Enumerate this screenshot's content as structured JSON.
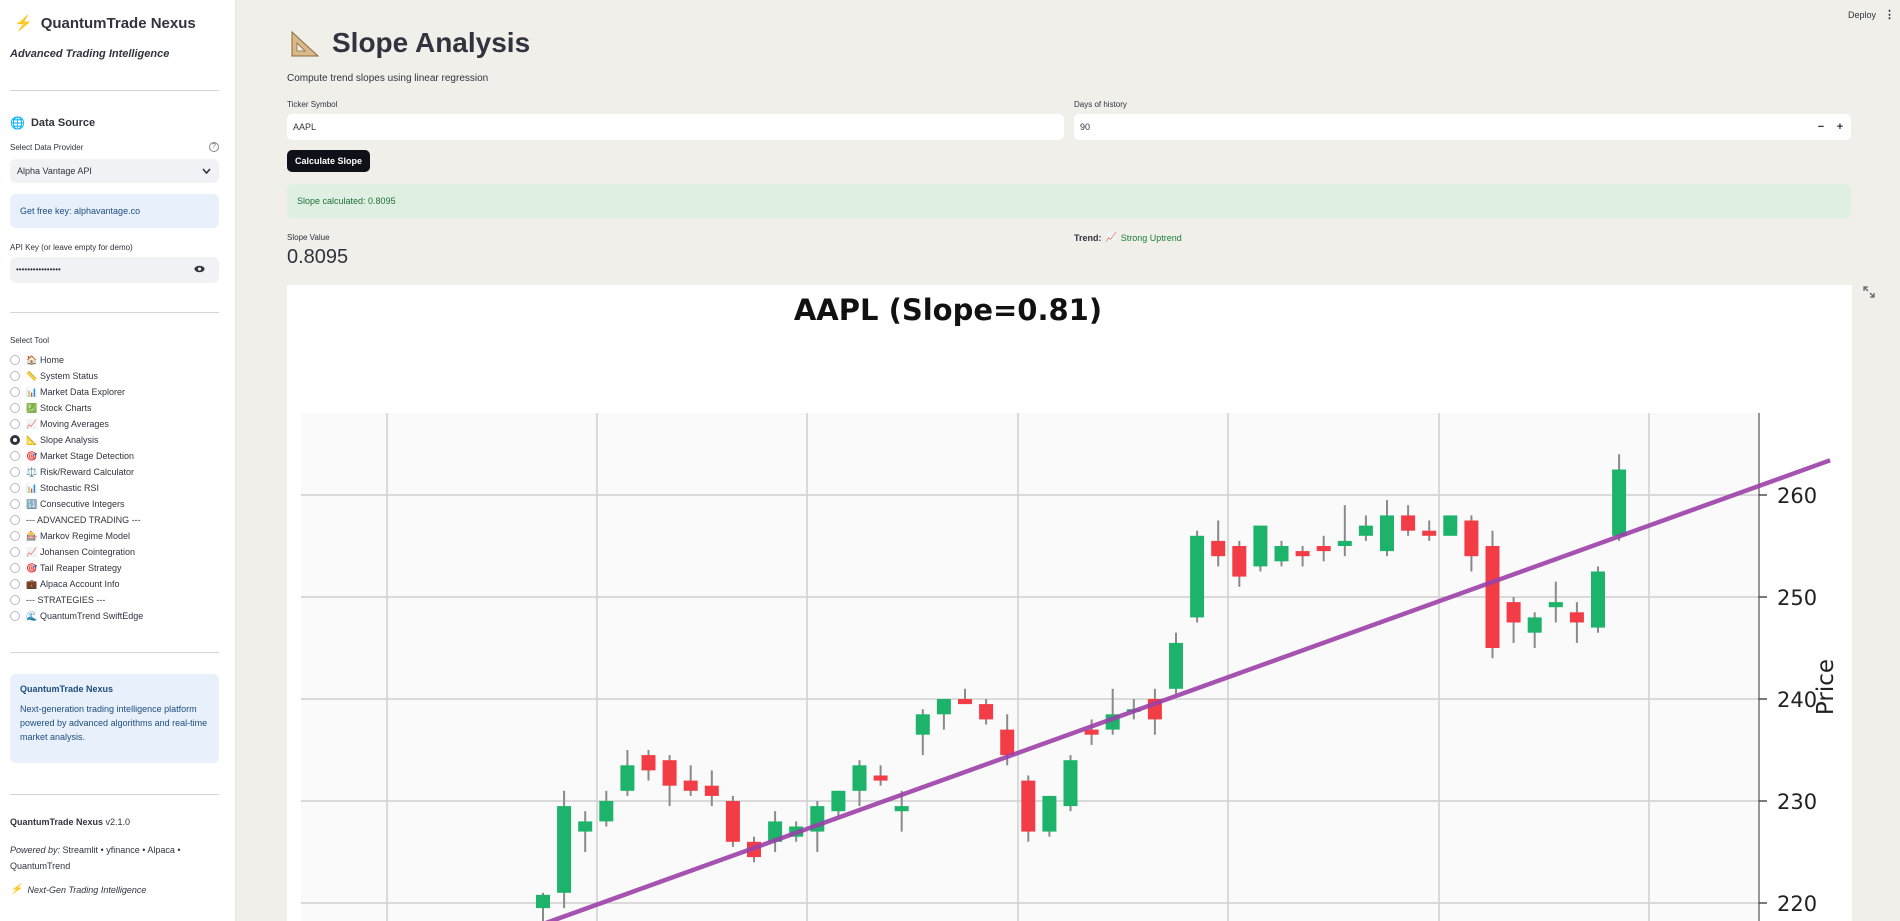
{
  "sidebar": {
    "brand": "QuantumTrade Nexus",
    "tagline": "Advanced Trading Intelligence",
    "data_source_title": "Data Source",
    "provider_label": "Select Data Provider",
    "provider_value": "Alpha Vantage API",
    "free_key_text": "Get free key: alphavantage.co",
    "api_key_label": "API Key (or leave empty for demo)",
    "api_key_value": "••••••••••••••••",
    "tool_label": "Select Tool",
    "tools": [
      {
        "emoji": "🏠",
        "label": "Home",
        "selected": false
      },
      {
        "emoji": "📏",
        "label": "System Status",
        "selected": false
      },
      {
        "emoji": "📊",
        "label": "Market Data Explorer",
        "selected": false
      },
      {
        "emoji": "💹",
        "label": "Stock Charts",
        "selected": false
      },
      {
        "emoji": "📈",
        "label": "Moving Averages",
        "selected": false
      },
      {
        "emoji": "📐",
        "label": "Slope Analysis",
        "selected": true
      },
      {
        "emoji": "🎯",
        "label": "Market Stage Detection",
        "selected": false
      },
      {
        "emoji": "⚖️",
        "label": "Risk/Reward Calculator",
        "selected": false
      },
      {
        "emoji": "📊",
        "label": "Stochastic RSI",
        "selected": false
      },
      {
        "emoji": "🔢",
        "label": "Consecutive Integers",
        "selected": false
      },
      {
        "emoji": "",
        "label": "--- ADVANCED TRADING ---",
        "selected": false
      },
      {
        "emoji": "🎰",
        "label": "Markov Regime Model",
        "selected": false
      },
      {
        "emoji": "📈",
        "label": "Johansen Cointegration",
        "selected": false
      },
      {
        "emoji": "🎯",
        "label": "Tail Reaper Strategy",
        "selected": false
      },
      {
        "emoji": "💼",
        "label": "Alpaca Account Info",
        "selected": false
      },
      {
        "emoji": "",
        "label": "--- STRATEGIES ---",
        "selected": false
      },
      {
        "emoji": "🌊",
        "label": "QuantumTrend SwiftEdge",
        "selected": false
      }
    ],
    "about_title": "QuantumTrade Nexus",
    "about_text": "Next-generation trading intelligence platform powered by advanced algorithms and real-time market analysis.",
    "version_name": "QuantumTrade Nexus",
    "version_num": "v2.1.0",
    "powered_label": "Powered by:",
    "powered_text": "Streamlit • yfinance • Alpaca • QuantumTrend",
    "footer_tag": "Next-Gen Trading Intelligence"
  },
  "header": {
    "deploy": "Deploy"
  },
  "main": {
    "title": "Slope Analysis",
    "caption": "Compute trend slopes using linear regression",
    "ticker_label": "Ticker Symbol",
    "ticker_value": "AAPL",
    "days_label": "Days of history",
    "days_value": "90",
    "calc_button": "Calculate Slope",
    "success_msg": "Slope calculated: 0.8095",
    "slope_label": "Slope Value",
    "slope_value": "0.8095",
    "trend_label": "Trend:",
    "trend_value": "Strong Uptrend"
  },
  "chart_data": {
    "type": "candlestick",
    "title": "AAPL (Slope=0.81)",
    "ylabel": "Price",
    "ylim": [
      217.5,
      267.5
    ],
    "yticks": [
      220,
      230,
      240,
      250,
      260
    ],
    "grid": true,
    "colors": {
      "up": "#1db36b",
      "down": "#f23c46",
      "regression": "#9b3fa8"
    },
    "regression": {
      "x_start": -3,
      "y_start": 215.7,
      "x_end": 61,
      "y_end": 263.4
    },
    "candles": [
      {
        "o": 219.5,
        "h": 221.0,
        "l": 218.0,
        "c": 220.8
      },
      {
        "o": 221.0,
        "h": 231.0,
        "l": 219.5,
        "c": 229.5
      },
      {
        "o": 227.0,
        "h": 229.0,
        "l": 225.0,
        "c": 228.0
      },
      {
        "o": 228.0,
        "h": 231.0,
        "l": 227.5,
        "c": 230.0
      },
      {
        "o": 231.0,
        "h": 235.0,
        "l": 230.5,
        "c": 233.5
      },
      {
        "o": 234.5,
        "h": 235.0,
        "l": 232.0,
        "c": 233.0
      },
      {
        "o": 234.0,
        "h": 234.5,
        "l": 229.5,
        "c": 231.5
      },
      {
        "o": 232.0,
        "h": 233.5,
        "l": 230.5,
        "c": 231.0
      },
      {
        "o": 231.5,
        "h": 233.0,
        "l": 229.5,
        "c": 230.5
      },
      {
        "o": 230.0,
        "h": 230.5,
        "l": 225.5,
        "c": 226.0
      },
      {
        "o": 226.0,
        "h": 226.5,
        "l": 224.0,
        "c": 224.5
      },
      {
        "o": 226.0,
        "h": 229.0,
        "l": 225.0,
        "c": 228.0
      },
      {
        "o": 226.5,
        "h": 228.0,
        "l": 226.0,
        "c": 227.5
      },
      {
        "o": 227.0,
        "h": 230.0,
        "l": 225.0,
        "c": 229.5
      },
      {
        "o": 229.0,
        "h": 231.0,
        "l": 228.5,
        "c": 231.0
      },
      {
        "o": 231.0,
        "h": 234.0,
        "l": 229.5,
        "c": 233.5
      },
      {
        "o": 232.5,
        "h": 233.5,
        "l": 231.5,
        "c": 232.0
      },
      {
        "o": 229.0,
        "h": 231.0,
        "l": 227.0,
        "c": 229.5
      },
      {
        "o": 236.5,
        "h": 239.0,
        "l": 234.5,
        "c": 238.5
      },
      {
        "o": 238.5,
        "h": 240.0,
        "l": 237.0,
        "c": 240.0
      },
      {
        "o": 240.0,
        "h": 241.0,
        "l": 239.5,
        "c": 239.5
      },
      {
        "o": 239.5,
        "h": 240.0,
        "l": 237.5,
        "c": 238.0
      },
      {
        "o": 237.0,
        "h": 238.5,
        "l": 233.5,
        "c": 234.5
      },
      {
        "o": 232.0,
        "h": 232.5,
        "l": 226.0,
        "c": 227.0
      },
      {
        "o": 227.0,
        "h": 230.5,
        "l": 226.5,
        "c": 230.5
      },
      {
        "o": 229.5,
        "h": 234.5,
        "l": 229.0,
        "c": 234.0
      },
      {
        "o": 237.0,
        "h": 238.0,
        "l": 235.5,
        "c": 236.5
      },
      {
        "o": 237.0,
        "h": 241.0,
        "l": 236.5,
        "c": 238.5
      },
      {
        "o": 239.0,
        "h": 240.0,
        "l": 238.0,
        "c": 239.0
      },
      {
        "o": 240.0,
        "h": 241.0,
        "l": 236.5,
        "c": 238.0
      },
      {
        "o": 241.0,
        "h": 246.5,
        "l": 240.5,
        "c": 245.5
      },
      {
        "o": 248.0,
        "h": 256.5,
        "l": 247.5,
        "c": 256.0
      },
      {
        "o": 255.5,
        "h": 257.5,
        "l": 253.0,
        "c": 254.0
      },
      {
        "o": 255.0,
        "h": 255.5,
        "l": 251.0,
        "c": 252.0
      },
      {
        "o": 253.0,
        "h": 257.0,
        "l": 252.5,
        "c": 257.0
      },
      {
        "o": 253.5,
        "h": 255.5,
        "l": 253.0,
        "c": 255.0
      },
      {
        "o": 254.5,
        "h": 255.0,
        "l": 253.0,
        "c": 254.0
      },
      {
        "o": 255.0,
        "h": 256.0,
        "l": 253.5,
        "c": 254.5
      },
      {
        "o": 255.0,
        "h": 259.0,
        "l": 254.0,
        "c": 255.5
      },
      {
        "o": 256.0,
        "h": 258.0,
        "l": 255.5,
        "c": 257.0
      },
      {
        "o": 254.5,
        "h": 259.5,
        "l": 254.0,
        "c": 258.0
      },
      {
        "o": 258.0,
        "h": 259.0,
        "l": 256.0,
        "c": 256.5
      },
      {
        "o": 256.5,
        "h": 257.5,
        "l": 255.5,
        "c": 256.0
      },
      {
        "o": 256.0,
        "h": 258.0,
        "l": 256.0,
        "c": 258.0
      },
      {
        "o": 257.5,
        "h": 258.0,
        "l": 252.5,
        "c": 254.0
      },
      {
        "o": 255.0,
        "h": 256.5,
        "l": 244.0,
        "c": 245.0
      },
      {
        "o": 249.5,
        "h": 250.0,
        "l": 245.5,
        "c": 247.5
      },
      {
        "o": 246.5,
        "h": 248.5,
        "l": 245.0,
        "c": 248.0
      },
      {
        "o": 249.0,
        "h": 251.5,
        "l": 247.5,
        "c": 249.5
      },
      {
        "o": 248.5,
        "h": 249.5,
        "l": 245.5,
        "c": 247.5
      },
      {
        "o": 247.0,
        "h": 253.0,
        "l": 246.5,
        "c": 252.5
      },
      {
        "o": 256.0,
        "h": 264.0,
        "l": 255.5,
        "c": 262.5
      }
    ]
  }
}
